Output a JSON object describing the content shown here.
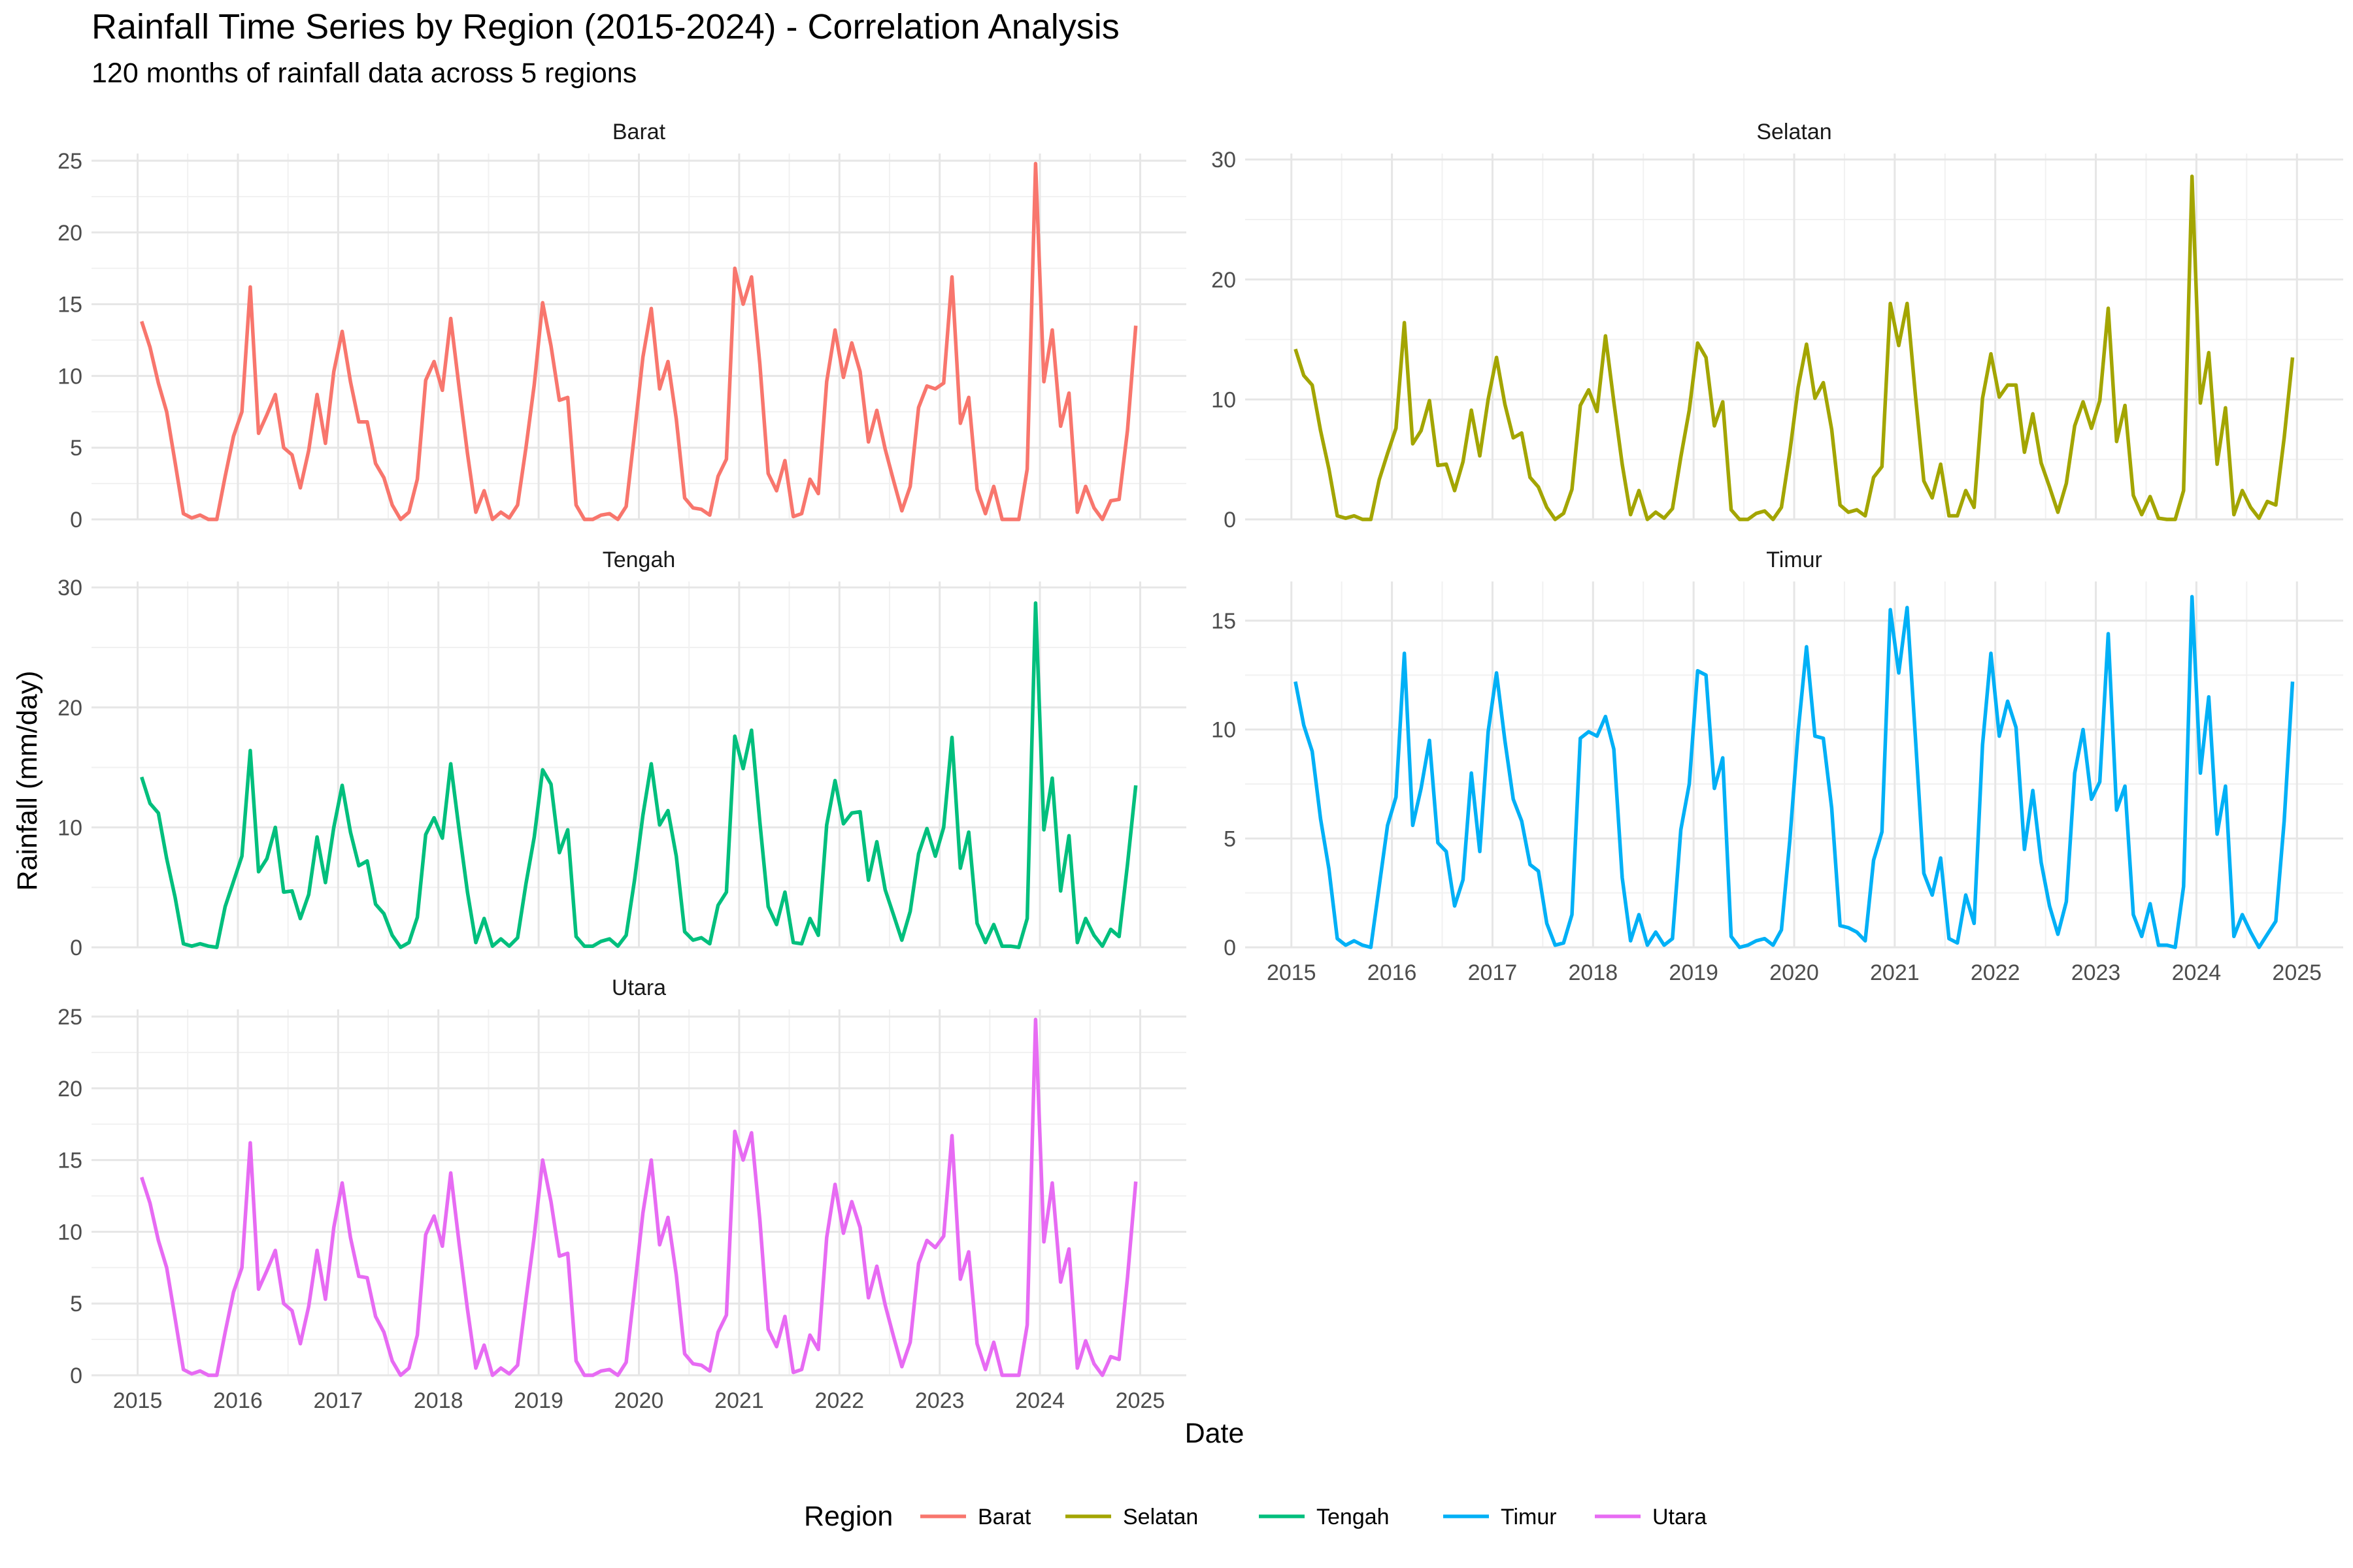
{
  "chart_data": {
    "type": "line",
    "title": "Rainfall Time Series by Region (2015-2024) - Correlation Analysis",
    "subtitle": "120 months of rainfall data across 5 regions",
    "xlabel": "Date",
    "ylabel": "Rainfall (mm/day)",
    "x_ticks": [
      "2015",
      "2016",
      "2017",
      "2018",
      "2019",
      "2020",
      "2021",
      "2022",
      "2023",
      "2024",
      "2025"
    ],
    "x_start": 2015.04,
    "x_step": 0.08333,
    "legend": {
      "title": "Region",
      "placement": "bottom"
    },
    "grid": true,
    "series": [
      {
        "name": "Barat",
        "color": "#F8766D",
        "ylim": [
          0,
          25.5
        ],
        "yticks": [
          0,
          5,
          10,
          15,
          20,
          25
        ],
        "values": [
          13.8,
          12.0,
          9.5,
          7.5,
          4.0,
          0.4,
          0.1,
          0.3,
          0.0,
          0.0,
          3.0,
          5.8,
          7.5,
          16.2,
          6.0,
          7.3,
          8.7,
          5.0,
          4.5,
          2.2,
          4.8,
          8.7,
          5.3,
          10.3,
          13.1,
          9.6,
          6.8,
          6.8,
          3.9,
          2.9,
          1.0,
          0.0,
          0.5,
          2.8,
          9.7,
          11.0,
          9.0,
          14.0,
          9.2,
          4.6,
          0.5,
          2.0,
          0.0,
          0.5,
          0.1,
          1.0,
          5.0,
          9.4,
          15.1,
          12.1,
          8.3,
          8.5,
          1.0,
          0.0,
          0.0,
          0.3,
          0.4,
          0.0,
          0.9,
          6.0,
          11.3,
          14.7,
          9.1,
          11.0,
          7.0,
          1.5,
          0.8,
          0.7,
          0.3,
          3.0,
          4.2,
          17.5,
          15.0,
          16.9,
          10.8,
          3.2,
          2.0,
          4.1,
          0.2,
          0.4,
          2.8,
          1.8,
          9.6,
          13.2,
          9.9,
          12.3,
          10.3,
          5.4,
          7.6,
          4.9,
          2.7,
          0.6,
          2.3,
          7.8,
          9.3,
          9.1,
          9.5,
          16.9,
          6.7,
          8.5,
          2.1,
          0.4,
          2.3,
          0.0,
          0.0,
          0.0,
          3.5,
          24.8,
          9.6,
          13.2,
          6.5,
          8.8,
          0.5,
          2.3,
          0.8,
          0.0,
          1.3,
          1.4,
          6.2,
          13.5
        ]
      },
      {
        "name": "Selatan",
        "color": "#A3A500",
        "ylim": [
          0,
          30.5
        ],
        "yticks": [
          0,
          10,
          20,
          30
        ],
        "values": [
          14.2,
          12.0,
          11.2,
          7.4,
          4.2,
          0.3,
          0.1,
          0.3,
          0.0,
          0.0,
          3.3,
          5.5,
          7.6,
          16.4,
          6.3,
          7.4,
          9.9,
          4.5,
          4.6,
          2.4,
          4.8,
          9.1,
          5.3,
          10.0,
          13.5,
          9.6,
          6.8,
          7.2,
          3.5,
          2.7,
          1.0,
          0.0,
          0.5,
          2.5,
          9.5,
          10.8,
          9.0,
          15.3,
          9.8,
          4.6,
          0.4,
          2.4,
          0.0,
          0.6,
          0.1,
          0.9,
          5.2,
          9.1,
          14.7,
          13.5,
          7.8,
          9.8,
          0.8,
          0.0,
          0.0,
          0.5,
          0.7,
          0.0,
          1.0,
          5.6,
          11.0,
          14.6,
          10.1,
          11.4,
          7.5,
          1.2,
          0.6,
          0.8,
          0.3,
          3.5,
          4.4,
          18.0,
          14.5,
          18.0,
          10.3,
          3.2,
          1.8,
          4.6,
          0.3,
          0.3,
          2.4,
          1.0,
          10.1,
          13.8,
          10.2,
          11.2,
          11.2,
          5.6,
          8.8,
          4.7,
          2.7,
          0.6,
          3.0,
          7.8,
          9.8,
          7.6,
          9.9,
          17.6,
          6.5,
          9.5,
          2.0,
          0.4,
          1.9,
          0.1,
          0.0,
          0.0,
          2.4,
          28.6,
          9.7,
          13.9,
          4.6,
          9.3,
          0.4,
          2.4,
          1.0,
          0.1,
          1.5,
          1.2,
          6.8,
          13.5
        ]
      },
      {
        "name": "Tengah",
        "color": "#00BF7D",
        "ylim": [
          0,
          30.5
        ],
        "yticks": [
          0,
          10,
          20,
          30
        ],
        "values": [
          14.2,
          12.0,
          11.2,
          7.4,
          4.2,
          0.3,
          0.1,
          0.3,
          0.1,
          0.0,
          3.4,
          5.5,
          7.6,
          16.4,
          6.3,
          7.4,
          10.0,
          4.6,
          4.7,
          2.4,
          4.4,
          9.2,
          5.4,
          10.0,
          13.5,
          9.6,
          6.8,
          7.2,
          3.6,
          2.8,
          1.0,
          0.0,
          0.4,
          2.5,
          9.4,
          10.8,
          9.1,
          15.3,
          9.8,
          4.6,
          0.4,
          2.4,
          0.1,
          0.7,
          0.1,
          0.8,
          5.3,
          9.2,
          14.8,
          13.6,
          7.9,
          9.8,
          0.9,
          0.1,
          0.1,
          0.5,
          0.7,
          0.1,
          1.0,
          5.6,
          11.0,
          15.3,
          10.2,
          11.4,
          7.6,
          1.3,
          0.6,
          0.8,
          0.3,
          3.5,
          4.6,
          17.6,
          14.9,
          18.1,
          10.4,
          3.4,
          1.9,
          4.6,
          0.4,
          0.3,
          2.4,
          1.0,
          10.2,
          13.9,
          10.3,
          11.2,
          11.3,
          5.6,
          8.8,
          4.8,
          2.7,
          0.6,
          3.0,
          7.8,
          9.9,
          7.6,
          10.0,
          17.5,
          6.6,
          9.6,
          2.0,
          0.4,
          1.9,
          0.1,
          0.1,
          0.0,
          2.4,
          28.7,
          9.8,
          14.1,
          4.7,
          9.3,
          0.4,
          2.4,
          1.0,
          0.1,
          1.5,
          0.9,
          6.9,
          13.5
        ]
      },
      {
        "name": "Timur",
        "color": "#00B0F6",
        "ylim": [
          0,
          16.8
        ],
        "yticks": [
          0,
          5,
          10,
          15
        ],
        "values": [
          12.2,
          10.2,
          9.0,
          5.9,
          3.6,
          0.4,
          0.1,
          0.3,
          0.1,
          0.0,
          2.8,
          5.6,
          6.9,
          13.5,
          5.6,
          7.3,
          9.5,
          4.8,
          4.4,
          1.9,
          3.1,
          8.0,
          4.4,
          9.9,
          12.6,
          9.5,
          6.8,
          5.8,
          3.8,
          3.5,
          1.1,
          0.1,
          0.2,
          1.5,
          9.6,
          9.9,
          9.7,
          10.6,
          9.1,
          3.2,
          0.3,
          1.5,
          0.1,
          0.7,
          0.1,
          0.4,
          5.4,
          7.5,
          12.7,
          12.5,
          7.3,
          8.7,
          0.5,
          0.0,
          0.1,
          0.3,
          0.4,
          0.1,
          0.8,
          4.9,
          9.9,
          13.8,
          9.7,
          9.6,
          6.4,
          1.0,
          0.9,
          0.7,
          0.3,
          4.0,
          5.3,
          15.5,
          12.6,
          15.6,
          9.6,
          3.4,
          2.4,
          4.1,
          0.4,
          0.2,
          2.4,
          1.1,
          9.3,
          13.5,
          9.7,
          11.3,
          10.1,
          4.5,
          7.2,
          3.9,
          1.9,
          0.6,
          2.1,
          8.0,
          10.0,
          6.8,
          7.6,
          14.4,
          6.3,
          7.4,
          1.5,
          0.5,
          2.0,
          0.1,
          0.1,
          0.0,
          2.8,
          16.1,
          8.0,
          11.5,
          5.2,
          7.4,
          0.5,
          1.5,
          0.7,
          0.0,
          0.6,
          1.2,
          5.8,
          12.2
        ]
      },
      {
        "name": "Utara",
        "color": "#E76BF3",
        "ylim": [
          0,
          25.5
        ],
        "yticks": [
          0,
          5,
          10,
          15,
          20,
          25
        ],
        "values": [
          13.8,
          12.0,
          9.4,
          7.5,
          4.0,
          0.4,
          0.1,
          0.3,
          0.0,
          0.0,
          3.0,
          5.8,
          7.5,
          16.2,
          6.0,
          7.3,
          8.7,
          5.0,
          4.5,
          2.2,
          4.8,
          8.7,
          5.3,
          10.3,
          13.4,
          9.6,
          6.9,
          6.8,
          4.1,
          3.0,
          1.0,
          0.0,
          0.5,
          2.8,
          9.8,
          11.1,
          9.0,
          14.1,
          9.2,
          4.6,
          0.5,
          2.1,
          0.0,
          0.5,
          0.1,
          0.7,
          5.3,
          9.7,
          15.0,
          12.1,
          8.3,
          8.5,
          1.0,
          0.0,
          0.0,
          0.3,
          0.4,
          0.0,
          0.9,
          6.0,
          11.3,
          15.0,
          9.1,
          11.0,
          7.0,
          1.5,
          0.8,
          0.7,
          0.3,
          3.0,
          4.2,
          17.0,
          15.0,
          16.9,
          10.8,
          3.2,
          2.0,
          4.1,
          0.2,
          0.4,
          2.8,
          1.8,
          9.6,
          13.3,
          9.9,
          12.1,
          10.3,
          5.4,
          7.6,
          4.9,
          2.7,
          0.6,
          2.3,
          7.8,
          9.4,
          8.9,
          9.7,
          16.7,
          6.7,
          8.6,
          2.2,
          0.4,
          2.3,
          0.0,
          0.0,
          0.0,
          3.5,
          24.8,
          9.3,
          13.4,
          6.5,
          8.8,
          0.5,
          2.4,
          0.8,
          0.0,
          1.3,
          1.1,
          6.8,
          13.5
        ]
      }
    ]
  }
}
